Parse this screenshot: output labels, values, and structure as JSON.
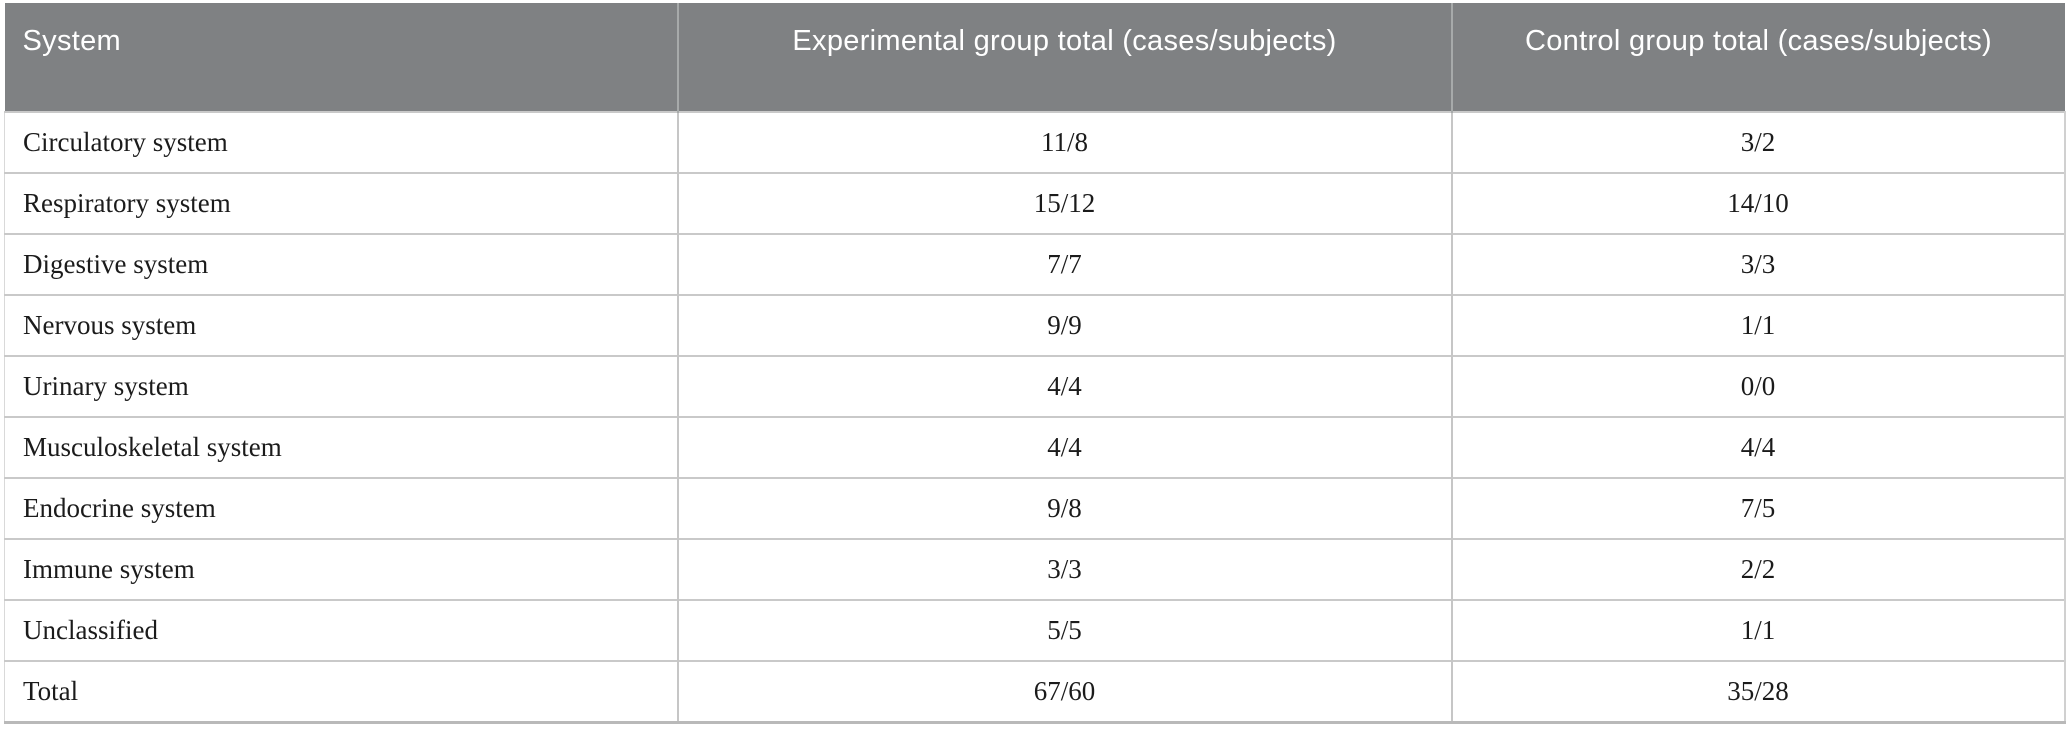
{
  "colors": {
    "header_bg": "#7f8183",
    "header_text": "#ffffff",
    "body_text": "#1b1b1b",
    "row_border": "#c9c9c9",
    "col_border": "#c6c6c6",
    "header_col_border": "#a7aaaa",
    "bottom_border": "#b9b9b9"
  },
  "table": {
    "columns": [
      {
        "key": "system",
        "label": "System",
        "align": "left"
      },
      {
        "key": "experimental",
        "label": "Experimental group total (cases/subjects)",
        "align": "center"
      },
      {
        "key": "control",
        "label": "Control group total (cases/subjects)",
        "align": "center"
      }
    ],
    "rows": [
      {
        "system": "Circulatory system",
        "experimental": "11/8",
        "control": "3/2"
      },
      {
        "system": "Respiratory system",
        "experimental": "15/12",
        "control": "14/10"
      },
      {
        "system": "Digestive system",
        "experimental": "7/7",
        "control": "3/3"
      },
      {
        "system": "Nervous system",
        "experimental": "9/9",
        "control": "1/1"
      },
      {
        "system": "Urinary system",
        "experimental": "4/4",
        "control": "0/0"
      },
      {
        "system": "Musculoskeletal system",
        "experimental": "4/4",
        "control": "4/4"
      },
      {
        "system": "Endocrine system",
        "experimental": "9/8",
        "control": "7/5"
      },
      {
        "system": "Immune system",
        "experimental": "3/3",
        "control": "2/2"
      },
      {
        "system": "Unclassified",
        "experimental": "5/5",
        "control": "1/1"
      },
      {
        "system": "Total",
        "experimental": "67/60",
        "control": "35/28"
      }
    ]
  }
}
